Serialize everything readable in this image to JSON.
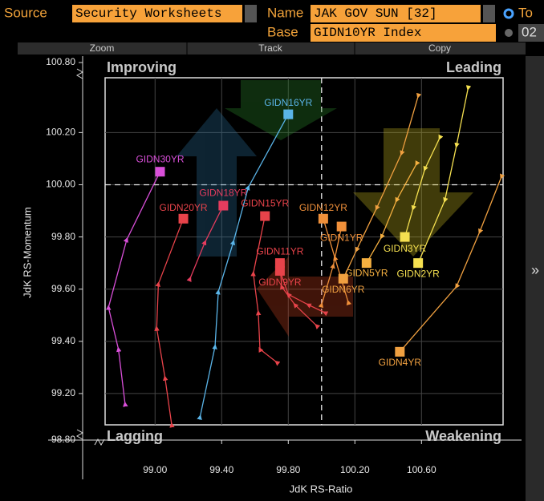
{
  "toolbar": {
    "source_label": "Source",
    "source": "Security Worksheets",
    "name_label": "Name",
    "name": "JAK GOV SUN [32]",
    "option_1": "To",
    "base_label": "Base",
    "base": "GIDN10YR Index",
    "option_2": "02",
    "buttons": [
      "Zoom",
      "Track",
      "Copy"
    ]
  },
  "chart_data": {
    "type": "scatter",
    "xlabel": "JdK RS-Ratio",
    "ylabel": "JdK RS-Momentum",
    "quadrants": [
      "Improving",
      "Leading",
      "Lagging",
      "Weakening"
    ],
    "xlim": [
      98.7,
      101.09
    ],
    "ylim": [
      99.08,
      100.41
    ],
    "xticks": [
      {
        "value": 99.0,
        "label": "99.00"
      },
      {
        "value": 99.4,
        "label": "99.40"
      },
      {
        "value": 99.8,
        "label": "99.80"
      },
      {
        "value": 100.2,
        "label": "100.20"
      },
      {
        "value": 100.6,
        "label": "100.60"
      }
    ],
    "yticks": [
      {
        "value": 99.2,
        "label": "99.20"
      },
      {
        "value": 99.4,
        "label": "99.40"
      },
      {
        "value": 99.6,
        "label": "99.60"
      },
      {
        "value": 99.8,
        "label": "99.80"
      },
      {
        "value": 100.0,
        "label": "100.00"
      },
      {
        "value": 100.2,
        "label": "100.20"
      }
    ],
    "y_break_ticks": [
      {
        "value": 98.8,
        "label": "98.80"
      },
      {
        "value": 100.8,
        "label": "100.80"
      }
    ],
    "reference_x": 100,
    "reference_y": 100,
    "grid": true,
    "series": [
      {
        "name": "GIDN30YR",
        "color": "#d94fd9",
        "x": [
          98.82,
          98.78,
          98.72,
          98.83,
          99.03
        ],
        "values": [
          99.16,
          99.37,
          99.53,
          99.79,
          100.05
        ]
      },
      {
        "name": "GIDN20YR",
        "color": "#e8434a",
        "x": [
          99.1,
          99.06,
          99.01,
          99.02,
          99.17
        ],
        "values": [
          99.08,
          99.26,
          99.45,
          99.62,
          99.87
        ]
      },
      {
        "name": "GIDN18YR",
        "color": "#e63c5e",
        "x": [
          99.21,
          99.3,
          99.41
        ],
        "values": [
          99.64,
          99.78,
          99.92
        ]
      },
      {
        "name": "GIDN16YR",
        "color": "#5ab4e8",
        "x": [
          99.27,
          99.36,
          99.38,
          99.47,
          99.56,
          99.8
        ],
        "values": [
          99.11,
          99.38,
          99.59,
          99.78,
          99.99,
          100.27
        ]
      },
      {
        "name": "GIDN15YR",
        "color": "#e8434a",
        "x": [
          99.73,
          99.63,
          99.62,
          99.59,
          99.66
        ],
        "values": [
          99.32,
          99.37,
          99.51,
          99.66,
          99.88
        ]
      },
      {
        "name": "GIDN12YR",
        "color": "#f0903a",
        "x": [
          100.16,
          100.08,
          100.01
        ],
        "values": [
          99.55,
          99.72,
          99.87
        ]
      },
      {
        "name": "GIDN11YR",
        "color": "#e8434a",
        "x": [
          99.97,
          99.84,
          99.76,
          99.75
        ],
        "values": [
          99.46,
          99.54,
          99.61,
          99.7
        ]
      },
      {
        "name": "GIDN9YR",
        "color": "#e8434a",
        "x": [
          100.02,
          99.92,
          99.8,
          99.75
        ],
        "values": [
          99.51,
          99.54,
          99.58,
          99.67
        ]
      },
      {
        "name": "GIDN1YR",
        "color": "#f0903a",
        "x": [
          100.0,
          100.07,
          100.12
        ],
        "values": [
          99.54,
          99.69,
          99.84
        ]
      },
      {
        "name": "GIDN5YR",
        "color": "#f5b040",
        "x": [
          100.57,
          100.45,
          100.36,
          100.27
        ],
        "values": [
          100.08,
          99.94,
          99.8,
          99.7
        ]
      },
      {
        "name": "GIDN6YR",
        "color": "#f0a040",
        "x": [
          100.58,
          100.48,
          100.33,
          100.21,
          100.13
        ],
        "values": [
          100.34,
          100.12,
          99.91,
          99.75,
          99.64
        ]
      },
      {
        "name": "GIDN3YR",
        "color": "#f5e050",
        "x": [
          100.71,
          100.62,
          100.55,
          100.5
        ],
        "values": [
          100.18,
          100.06,
          99.91,
          99.8
        ]
      },
      {
        "name": "GIDN2YR",
        "color": "#f5e050",
        "x": [
          100.88,
          100.81,
          100.74,
          100.58
        ],
        "values": [
          100.37,
          100.15,
          99.94,
          99.7
        ]
      },
      {
        "name": "GIDN4YR",
        "color": "#f0a040",
        "x": [
          101.08,
          100.95,
          100.81,
          100.47
        ],
        "values": [
          100.03,
          99.82,
          99.61,
          99.36
        ]
      }
    ]
  }
}
